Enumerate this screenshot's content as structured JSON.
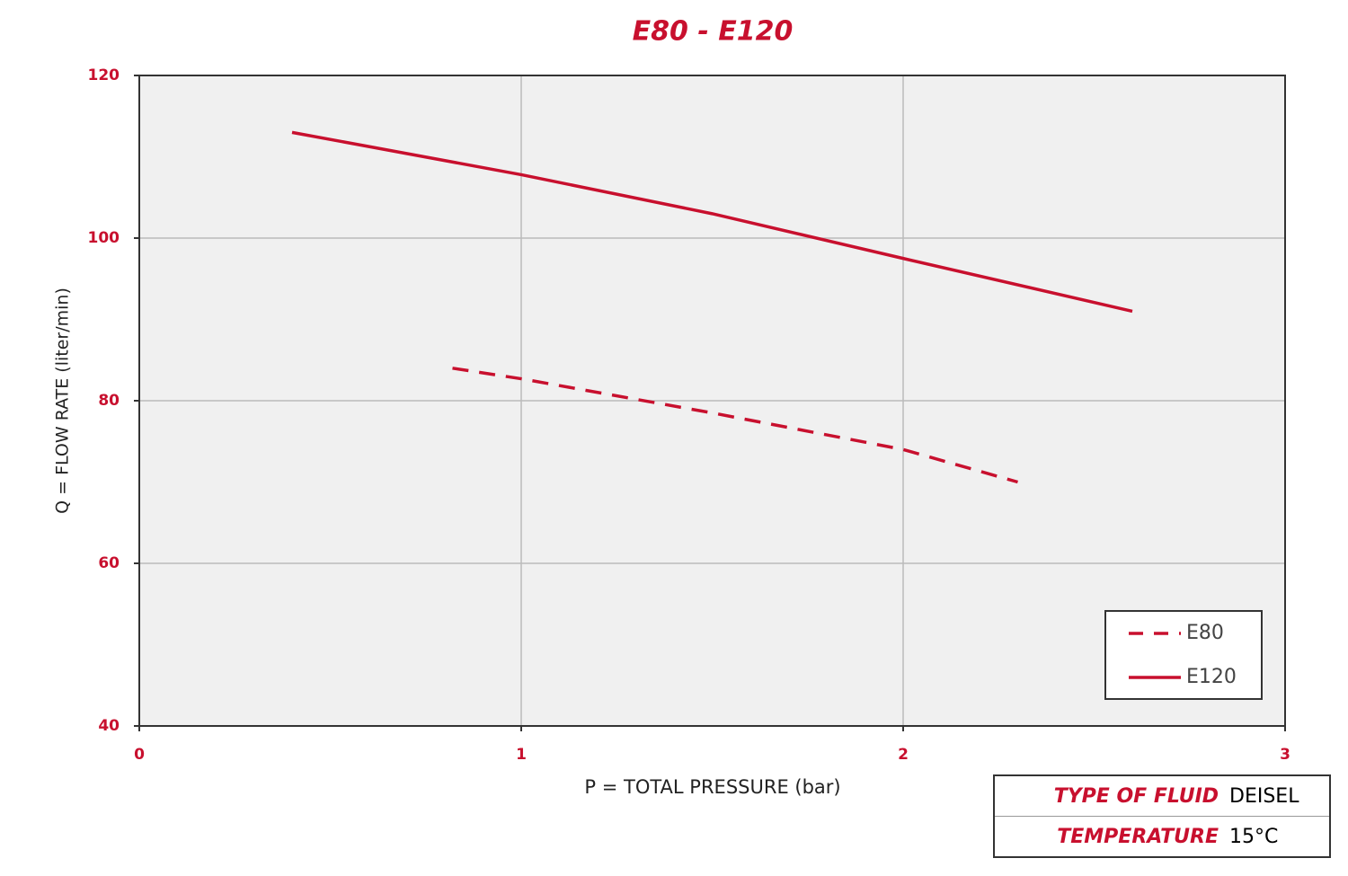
{
  "chart_data": {
    "type": "line",
    "title": "E80 - E120",
    "x_label": "P = TOTAL PRESSURE (bar)",
    "y_label": "Q = FLOW RATE (liter/min)",
    "series": [
      {
        "name": "E80",
        "color": "#c8102e",
        "line_style": "dashed",
        "x": [
          0.82,
          1,
          1.5,
          2,
          2.3
        ],
        "values": [
          84,
          82.7,
          78.5,
          74,
          70
        ]
      },
      {
        "name": "E120",
        "color": "#c8102e",
        "line_style": "solid",
        "x": [
          0.4,
          1,
          1.5,
          2,
          2.6
        ],
        "values": [
          113,
          107.8,
          103,
          97.5,
          91
        ]
      }
    ],
    "xlim": [
      0,
      3
    ],
    "xticks": [
      0,
      1,
      2,
      3
    ],
    "ylim": [
      40,
      120
    ],
    "yticks": [
      40,
      60,
      80,
      100,
      120
    ],
    "grid": true,
    "legend": "lower right"
  },
  "info": {
    "rows": [
      [
        "TYPE OF FLUID",
        "DEISEL"
      ],
      [
        "TEMPERATURE",
        "15°C"
      ]
    ]
  }
}
